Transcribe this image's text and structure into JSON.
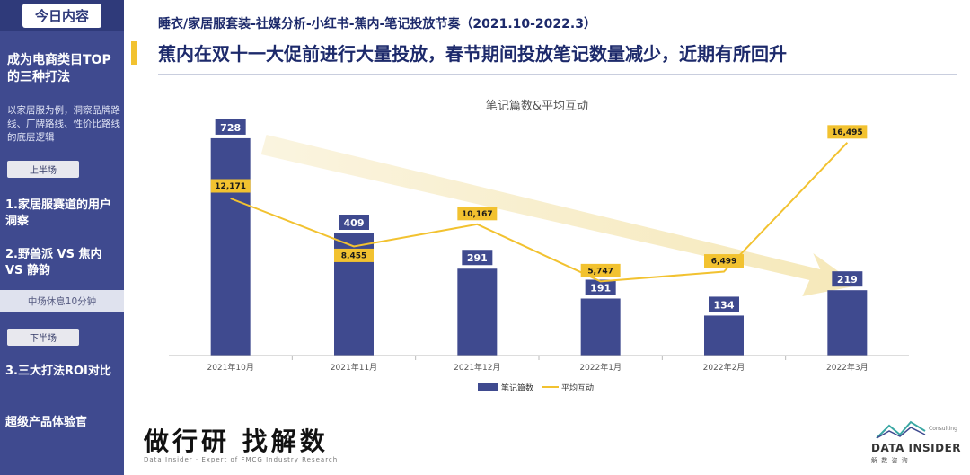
{
  "sidebar": {
    "top_label": "今日内容",
    "heading": "成为电商类目TOP的三种打法",
    "description": "以家居服为例，洞察品牌路线、厂牌路线、性价比路线的底层逻辑",
    "first_half_label": "上半场",
    "item1": "1.家居服赛道的用户洞察",
    "item2": "2.野兽派 VS 焦内 VS 静韵",
    "break_label": "中场休息10分钟",
    "second_half_label": "下半场",
    "item3": "3.三大打法ROI对比",
    "item4": "超级产品体验官"
  },
  "header": {
    "subtitle": "睡衣/家居服套装-社媒分析-小红书-蕉内-笔记投放节奏（2021.10-2022.3）",
    "headline": "蕉内在双十一大促前进行大量投放，春节期间投放笔记数量减少，近期有所回升"
  },
  "chart_data": {
    "type": "bar",
    "title": "笔记篇数&平均互动",
    "categories": [
      "2021年10月",
      "2021年11月",
      "2021年12月",
      "2022年1月",
      "2022年2月",
      "2022年3月"
    ],
    "series": [
      {
        "name": "笔记篇数",
        "type": "bar",
        "values": [
          728,
          409,
          291,
          191,
          134,
          219
        ],
        "labels": [
          "728",
          "409",
          "291",
          "191",
          "134",
          "219"
        ]
      },
      {
        "name": "平均互动",
        "type": "line",
        "values": [
          12171,
          8455,
          10167,
          5747,
          6499,
          16495
        ],
        "labels": [
          "12,171",
          "8,455",
          "10,167",
          "5,747",
          "6,499",
          "16,495"
        ]
      }
    ],
    "bar_ylim": [
      0,
      800
    ],
    "line_ylim": [
      0,
      18500
    ],
    "legend_position": "bottom",
    "grid": false,
    "colors": {
      "bar": "#3f4a8f",
      "line": "#f2c230",
      "trend_arrow": "#f7ecc4"
    }
  },
  "footer": {
    "slogan": "做行研 找解数",
    "slogan_sub": "Data Insider · Expert of FMCG Industry Research",
    "logo_text": "DATA INSIDER",
    "logo_sub": "解 数 咨 询",
    "logo_consult": "Consulting"
  }
}
